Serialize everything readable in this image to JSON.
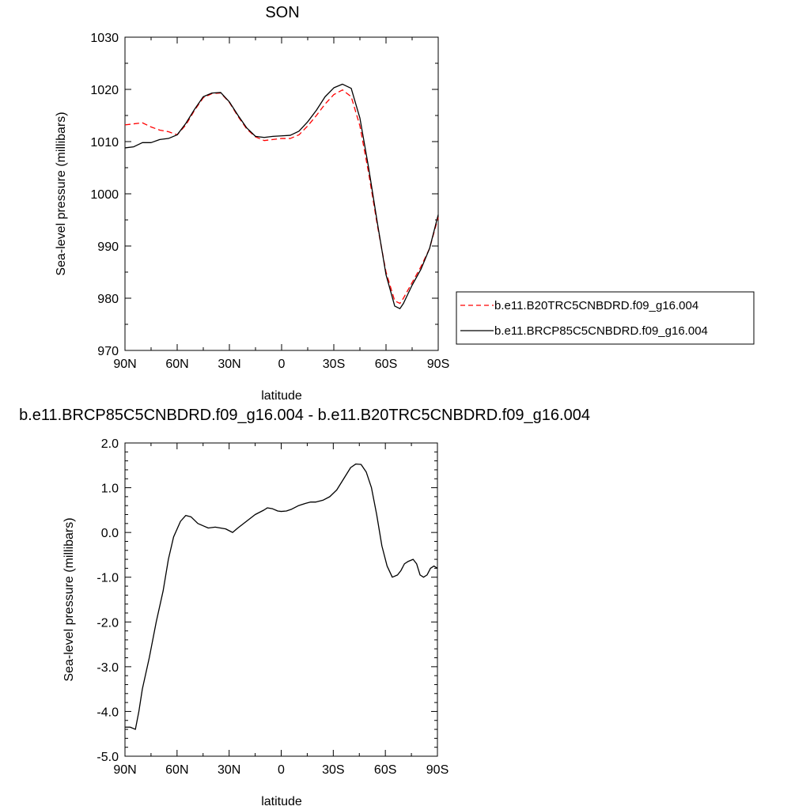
{
  "chart_data": [
    {
      "type": "line",
      "title": "SON",
      "xlabel": "latitude",
      "ylabel": "Sea-level pressure (millibars)",
      "xlim": [
        90,
        -90
      ],
      "ylim": [
        970,
        1030
      ],
      "x_ticks": [
        {
          "value": 90,
          "label": "90N"
        },
        {
          "value": 60,
          "label": "60N"
        },
        {
          "value": 30,
          "label": "30N"
        },
        {
          "value": 0,
          "label": "0"
        },
        {
          "value": -30,
          "label": "30S"
        },
        {
          "value": -60,
          "label": "60S"
        },
        {
          "value": -90,
          "label": "90S"
        }
      ],
      "y_ticks": [
        {
          "value": 970,
          "label": "970"
        },
        {
          "value": 980,
          "label": "980"
        },
        {
          "value": 990,
          "label": "990"
        },
        {
          "value": 1000,
          "label": "1000"
        },
        {
          "value": 1010,
          "label": "1010"
        },
        {
          "value": 1020,
          "label": "1020"
        },
        {
          "value": 1030,
          "label": "1030"
        }
      ],
      "legend": "right",
      "series": [
        {
          "name": "b.e11.B20TRC5CNBDRD.f09_g16.004",
          "color": "#ff0000",
          "dash": "dashed",
          "points": [
            [
              90,
              1013.2
            ],
            [
              85,
              1013.4
            ],
            [
              80,
              1013.6
            ],
            [
              75,
              1012.8
            ],
            [
              70,
              1012.2
            ],
            [
              65,
              1011.9
            ],
            [
              60,
              1011.3
            ],
            [
              55,
              1013.2
            ],
            [
              50,
              1016.0
            ],
            [
              45,
              1018.4
            ],
            [
              40,
              1019.2
            ],
            [
              35,
              1019.3
            ],
            [
              30,
              1017.5
            ],
            [
              25,
              1014.8
            ],
            [
              20,
              1012.4
            ],
            [
              15,
              1010.9
            ],
            [
              10,
              1010.2
            ],
            [
              5,
              1010.4
            ],
            [
              0,
              1010.6
            ],
            [
              -5,
              1010.6
            ],
            [
              -10,
              1011.3
            ],
            [
              -15,
              1013.0
            ],
            [
              -20,
              1015.0
            ],
            [
              -25,
              1017.2
            ],
            [
              -30,
              1019.0
            ],
            [
              -35,
              1019.9
            ],
            [
              -40,
              1018.6
            ],
            [
              -45,
              1013.0
            ],
            [
              -50,
              1004.0
            ],
            [
              -55,
              994.0
            ],
            [
              -60,
              985.0
            ],
            [
              -65,
              979.5
            ],
            [
              -68,
              979.0
            ],
            [
              -70,
              980.0
            ],
            [
              -75,
              983.0
            ],
            [
              -80,
              986.0
            ],
            [
              -85,
              989.5
            ],
            [
              -90,
              995.5
            ]
          ]
        },
        {
          "name": "b.e11.BRCP85C5CNBDRD.f09_g16.004",
          "color": "#000000",
          "dash": "solid",
          "points": [
            [
              90,
              1008.8
            ],
            [
              85,
              1009.0
            ],
            [
              80,
              1009.8
            ],
            [
              75,
              1009.8
            ],
            [
              70,
              1010.4
            ],
            [
              65,
              1010.6
            ],
            [
              60,
              1011.3
            ],
            [
              55,
              1013.5
            ],
            [
              50,
              1016.2
            ],
            [
              45,
              1018.6
            ],
            [
              40,
              1019.3
            ],
            [
              35,
              1019.4
            ],
            [
              30,
              1017.6
            ],
            [
              25,
              1015.0
            ],
            [
              20,
              1012.6
            ],
            [
              15,
              1011.0
            ],
            [
              10,
              1010.8
            ],
            [
              5,
              1011.0
            ],
            [
              0,
              1011.1
            ],
            [
              -5,
              1011.2
            ],
            [
              -10,
              1012.0
            ],
            [
              -15,
              1013.8
            ],
            [
              -20,
              1016.0
            ],
            [
              -25,
              1018.6
            ],
            [
              -30,
              1020.3
            ],
            [
              -35,
              1021.0
            ],
            [
              -40,
              1020.2
            ],
            [
              -45,
              1014.5
            ],
            [
              -50,
              1005.0
            ],
            [
              -55,
              994.5
            ],
            [
              -60,
              984.5
            ],
            [
              -65,
              978.5
            ],
            [
              -68,
              978.0
            ],
            [
              -70,
              979.0
            ],
            [
              -75,
              982.5
            ],
            [
              -80,
              985.5
            ],
            [
              -85,
              989.5
            ],
            [
              -90,
              996.0
            ]
          ]
        }
      ]
    },
    {
      "type": "line",
      "title": "b.e11.BRCP85C5CNBDRD.f09_g16.004 - b.e11.B20TRC5CNBDRD.f09_g16.004",
      "xlabel": "latitude",
      "ylabel": "Sea-level pressure (millibars)",
      "xlim": [
        90,
        -90
      ],
      "ylim": [
        -5.0,
        2.0
      ],
      "x_ticks": [
        {
          "value": 90,
          "label": "90N"
        },
        {
          "value": 60,
          "label": "60N"
        },
        {
          "value": 30,
          "label": "30N"
        },
        {
          "value": 0,
          "label": "0"
        },
        {
          "value": -30,
          "label": "30S"
        },
        {
          "value": -60,
          "label": "60S"
        },
        {
          "value": -90,
          "label": "90S"
        }
      ],
      "y_ticks": [
        {
          "value": -5.0,
          "label": "-5.0"
        },
        {
          "value": -4.0,
          "label": "-4.0"
        },
        {
          "value": -3.0,
          "label": "-3.0"
        },
        {
          "value": -2.0,
          "label": "-2.0"
        },
        {
          "value": -1.0,
          "label": "-1.0"
        },
        {
          "value": 0.0,
          "label": "0.0"
        },
        {
          "value": 1.0,
          "label": "1.0"
        },
        {
          "value": 2.0,
          "label": "2.0"
        }
      ],
      "series": [
        {
          "name": "",
          "color": "#000000",
          "dash": "solid",
          "points": [
            [
              90,
              -4.35
            ],
            [
              87,
              -4.35
            ],
            [
              84,
              -4.4
            ],
            [
              82,
              -4.0
            ],
            [
              80,
              -3.5
            ],
            [
              76,
              -2.8
            ],
            [
              72,
              -2.0
            ],
            [
              68,
              -1.3
            ],
            [
              65,
              -0.6
            ],
            [
              62,
              -0.1
            ],
            [
              58,
              0.25
            ],
            [
              55,
              0.38
            ],
            [
              52,
              0.35
            ],
            [
              48,
              0.2
            ],
            [
              45,
              0.15
            ],
            [
              42,
              0.1
            ],
            [
              38,
              0.12
            ],
            [
              35,
              0.1
            ],
            [
              32,
              0.08
            ],
            [
              28,
              0.0
            ],
            [
              25,
              0.1
            ],
            [
              20,
              0.25
            ],
            [
              15,
              0.4
            ],
            [
              10,
              0.5
            ],
            [
              8,
              0.55
            ],
            [
              5,
              0.53
            ],
            [
              2,
              0.48
            ],
            [
              0,
              0.47
            ],
            [
              -3,
              0.48
            ],
            [
              -6,
              0.52
            ],
            [
              -10,
              0.6
            ],
            [
              -14,
              0.65
            ],
            [
              -17,
              0.68
            ],
            [
              -20,
              0.68
            ],
            [
              -24,
              0.72
            ],
            [
              -28,
              0.8
            ],
            [
              -32,
              0.95
            ],
            [
              -36,
              1.2
            ],
            [
              -40,
              1.45
            ],
            [
              -43,
              1.53
            ],
            [
              -46,
              1.52
            ],
            [
              -49,
              1.35
            ],
            [
              -52,
              1.0
            ],
            [
              -55,
              0.4
            ],
            [
              -58,
              -0.3
            ],
            [
              -61,
              -0.75
            ],
            [
              -64,
              -1.0
            ],
            [
              -67,
              -0.95
            ],
            [
              -69,
              -0.85
            ],
            [
              -71,
              -0.7
            ],
            [
              -73,
              -0.65
            ],
            [
              -76,
              -0.6
            ],
            [
              -78,
              -0.7
            ],
            [
              -80,
              -0.95
            ],
            [
              -82,
              -1.0
            ],
            [
              -84,
              -0.95
            ],
            [
              -86,
              -0.8
            ],
            [
              -88,
              -0.75
            ],
            [
              -90,
              -0.8
            ]
          ]
        }
      ]
    }
  ]
}
